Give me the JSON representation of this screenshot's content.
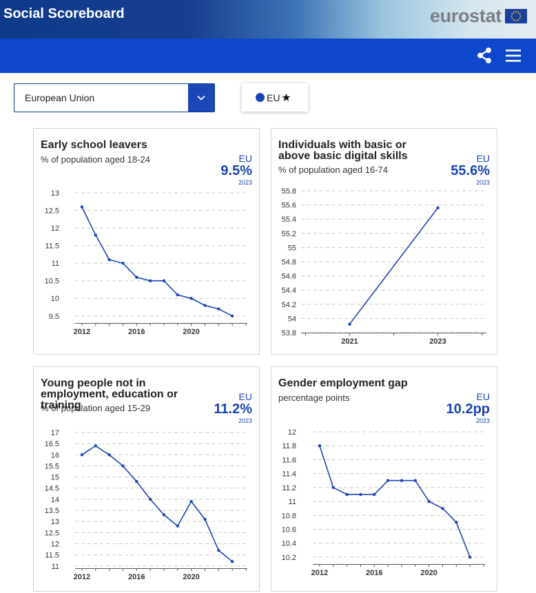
{
  "header": {
    "app_title": "Social Scoreboard",
    "logo_text": "eurostat",
    "logo_icon": "eu-flag-icon",
    "share_icon": "share-icon",
    "menu_icon": "hamburger-menu-icon"
  },
  "controls": {
    "country_select_value": "European Union",
    "dropdown_icon": "chevron-down-icon",
    "legend_label": "EU",
    "legend_icon": "star-icon",
    "legend_color": "#1a44b8"
  },
  "colors": {
    "accent": "#1a44b8",
    "header_blue": "#0e47cb",
    "series": "#1a44b8"
  },
  "cards": [
    {
      "title": "Early school leavers",
      "subtitle": "% of population aged 18-24",
      "geo": "EU",
      "value": "9.5%",
      "year": "2023"
    },
    {
      "title": "Individuals with basic or above basic digital skills",
      "subtitle": "% of population aged 16-74",
      "geo": "EU",
      "value": "55.6%",
      "year": "2023"
    },
    {
      "title": "Young people not in employment, education or training",
      "subtitle": "% of population aged 15-29",
      "geo": "EU",
      "value": "11.2%",
      "year": "2023"
    },
    {
      "title": "Gender employment gap",
      "subtitle": "percentage points",
      "geo": "EU",
      "value": "10.2pp",
      "year": "2023"
    }
  ],
  "chart_data": [
    {
      "type": "line",
      "x": [
        2012,
        2013,
        2014,
        2015,
        2016,
        2017,
        2018,
        2019,
        2020,
        2021,
        2022,
        2023
      ],
      "series": [
        {
          "values": [
            12.6,
            11.8,
            11.1,
            11.0,
            10.6,
            10.5,
            10.5,
            10.1,
            10.0,
            9.8,
            9.7,
            9.5
          ]
        }
      ],
      "xticks": [
        2012,
        2016,
        2020
      ],
      "yticks": [
        9.5,
        10,
        10.5,
        11,
        11.5,
        12,
        12.5,
        13
      ],
      "ylim": [
        9.3,
        13
      ],
      "xlim": [
        2011.5,
        2024.1
      ],
      "grid": true
    },
    {
      "type": "line",
      "x": [
        2021,
        2023
      ],
      "series": [
        {
          "values": [
            53.92,
            55.56
          ]
        }
      ],
      "xticks": [
        2021,
        2023
      ],
      "yticks": [
        53.8,
        54,
        54.2,
        54.4,
        54.6,
        54.8,
        55,
        55.2,
        55.4,
        55.6,
        55.8
      ],
      "ylim": [
        53.8,
        55.8
      ],
      "xlim": [
        2019.9,
        2024.1
      ],
      "grid": true
    },
    {
      "type": "line",
      "x": [
        2012,
        2013,
        2014,
        2015,
        2016,
        2017,
        2018,
        2019,
        2020,
        2021,
        2022,
        2023
      ],
      "series": [
        {
          "values": [
            16.0,
            16.4,
            16.0,
            15.5,
            14.8,
            14.0,
            13.3,
            12.8,
            13.9,
            13.1,
            11.7,
            11.2
          ]
        }
      ],
      "xticks": [
        2012,
        2016,
        2020
      ],
      "yticks": [
        11,
        11.5,
        12,
        12.5,
        13,
        13.5,
        14,
        14.5,
        15,
        15.5,
        16,
        16.5,
        17
      ],
      "ylim": [
        10.9,
        17
      ],
      "xlim": [
        2011.5,
        2024.1
      ],
      "grid": true
    },
    {
      "type": "line",
      "x": [
        2012,
        2013,
        2014,
        2015,
        2016,
        2017,
        2018,
        2019,
        2020,
        2021,
        2022,
        2023
      ],
      "series": [
        {
          "values": [
            11.8,
            11.2,
            11.1,
            11.1,
            11.1,
            11.3,
            11.3,
            11.3,
            11.0,
            10.9,
            10.7,
            10.2
          ]
        }
      ],
      "xticks": [
        2012,
        2016,
        2020
      ],
      "yticks": [
        10.2,
        10.4,
        10.6,
        10.8,
        11,
        11.2,
        11.4,
        11.6,
        11.8,
        12
      ],
      "ylim": [
        10.1,
        12
      ],
      "xlim": [
        2011.5,
        2024.1
      ],
      "grid": true
    }
  ]
}
